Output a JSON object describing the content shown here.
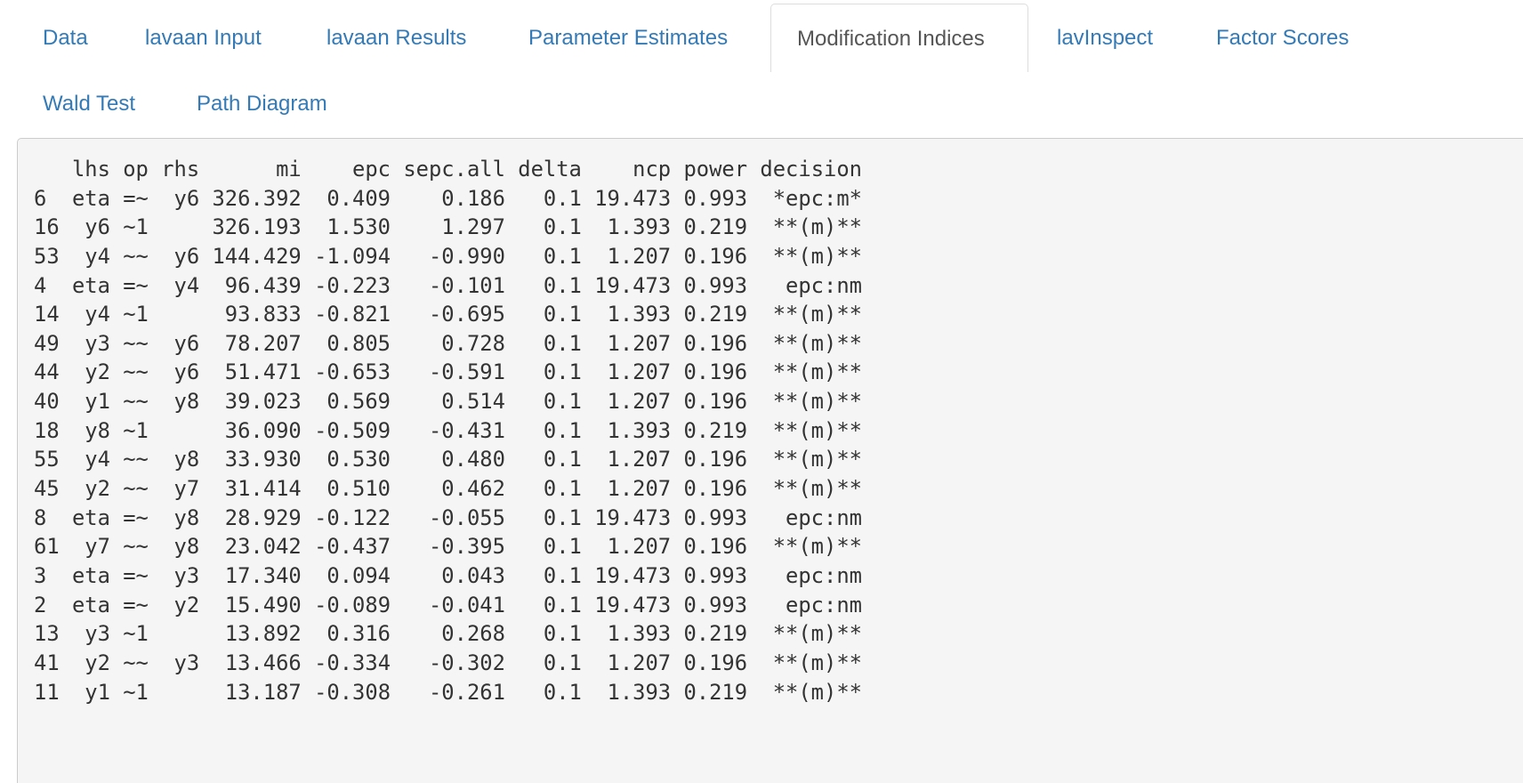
{
  "tabs": [
    {
      "label": "Data",
      "active": false
    },
    {
      "label": "lavaan Input",
      "active": false
    },
    {
      "label": "lavaan Results",
      "active": false
    },
    {
      "label": "Parameter Estimates",
      "active": false
    },
    {
      "label": "Modification Indices",
      "active": true
    },
    {
      "label": "lavInspect",
      "active": false
    },
    {
      "label": "Factor Scores",
      "active": false
    },
    {
      "label": "Wald Test",
      "active": false
    },
    {
      "label": "Path Diagram",
      "active": false
    }
  ],
  "table": {
    "columns": [
      "",
      "lhs",
      "op",
      "rhs",
      "mi",
      "epc",
      "sepc.all",
      "delta",
      "ncp",
      "power",
      "decision"
    ],
    "rows": [
      [
        "6",
        "eta",
        "=~",
        "y6",
        "326.392",
        "0.409",
        "0.186",
        "0.1",
        "19.473",
        "0.993",
        "*epc:m*"
      ],
      [
        "16",
        "y6",
        "~1",
        "",
        "326.193",
        "1.530",
        "1.297",
        "0.1",
        "1.393",
        "0.219",
        "**(m)**"
      ],
      [
        "53",
        "y4",
        "~~",
        "y6",
        "144.429",
        "-1.094",
        "-0.990",
        "0.1",
        "1.207",
        "0.196",
        "**(m)**"
      ],
      [
        "4",
        "eta",
        "=~",
        "y4",
        "96.439",
        "-0.223",
        "-0.101",
        "0.1",
        "19.473",
        "0.993",
        "epc:nm"
      ],
      [
        "14",
        "y4",
        "~1",
        "",
        "93.833",
        "-0.821",
        "-0.695",
        "0.1",
        "1.393",
        "0.219",
        "**(m)**"
      ],
      [
        "49",
        "y3",
        "~~",
        "y6",
        "78.207",
        "0.805",
        "0.728",
        "0.1",
        "1.207",
        "0.196",
        "**(m)**"
      ],
      [
        "44",
        "y2",
        "~~",
        "y6",
        "51.471",
        "-0.653",
        "-0.591",
        "0.1",
        "1.207",
        "0.196",
        "**(m)**"
      ],
      [
        "40",
        "y1",
        "~~",
        "y8",
        "39.023",
        "0.569",
        "0.514",
        "0.1",
        "1.207",
        "0.196",
        "**(m)**"
      ],
      [
        "18",
        "y8",
        "~1",
        "",
        "36.090",
        "-0.509",
        "-0.431",
        "0.1",
        "1.393",
        "0.219",
        "**(m)**"
      ],
      [
        "55",
        "y4",
        "~~",
        "y8",
        "33.930",
        "0.530",
        "0.480",
        "0.1",
        "1.207",
        "0.196",
        "**(m)**"
      ],
      [
        "45",
        "y2",
        "~~",
        "y7",
        "31.414",
        "0.510",
        "0.462",
        "0.1",
        "1.207",
        "0.196",
        "**(m)**"
      ],
      [
        "8",
        "eta",
        "=~",
        "y8",
        "28.929",
        "-0.122",
        "-0.055",
        "0.1",
        "19.473",
        "0.993",
        "epc:nm"
      ],
      [
        "61",
        "y7",
        "~~",
        "y8",
        "23.042",
        "-0.437",
        "-0.395",
        "0.1",
        "1.207",
        "0.196",
        "**(m)**"
      ],
      [
        "3",
        "eta",
        "=~",
        "y3",
        "17.340",
        "0.094",
        "0.043",
        "0.1",
        "19.473",
        "0.993",
        "epc:nm"
      ],
      [
        "2",
        "eta",
        "=~",
        "y2",
        "15.490",
        "-0.089",
        "-0.041",
        "0.1",
        "19.473",
        "0.993",
        "epc:nm"
      ],
      [
        "13",
        "y3",
        "~1",
        "",
        "13.892",
        "0.316",
        "0.268",
        "0.1",
        "1.393",
        "0.219",
        "**(m)**"
      ],
      [
        "41",
        "y2",
        "~~",
        "y3",
        "13.466",
        "-0.334",
        "-0.302",
        "0.1",
        "1.207",
        "0.196",
        "**(m)**"
      ],
      [
        "11",
        "y1",
        "~1",
        "",
        "13.187",
        "-0.308",
        "-0.261",
        "0.1",
        "1.393",
        "0.219",
        "**(m)**"
      ]
    ]
  }
}
